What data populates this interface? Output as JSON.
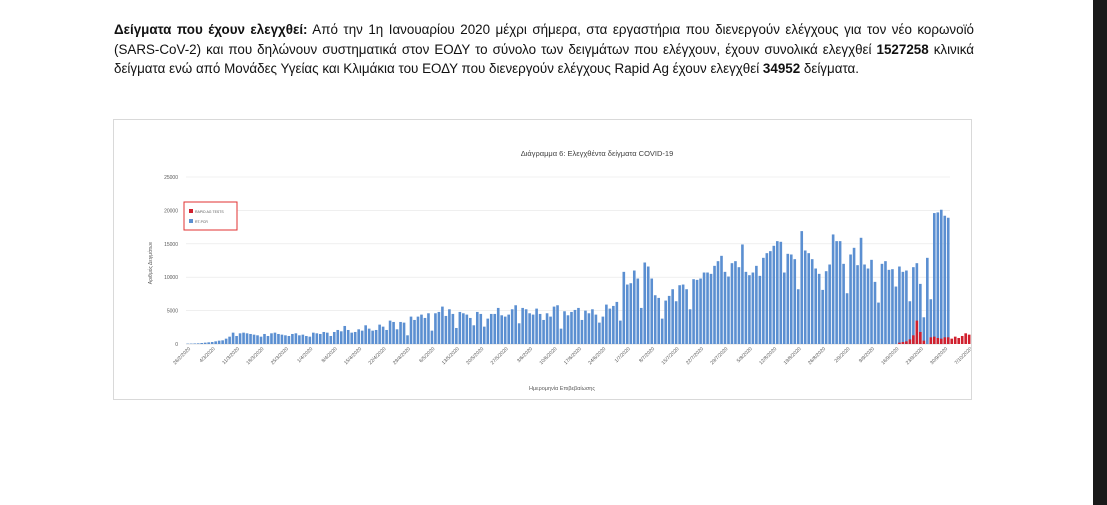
{
  "paragraph": {
    "heading": "Δείγματα που έχουν ελεγχθεί:",
    "text1": " Από την 1η Ιανουαρίου 2020 μέχρι σήμερα, στα εργαστήρια που διενεργούν ελέγχους για τον νέο κορωνοϊό (SARS-CoV-2) και που δηλώνουν συστηματικά στον ΕΟΔΥ το σύνολο των δειγμάτων που ελέγχουν, έχουν συνολικά ελεγχθεί ",
    "total_samples": "1527258",
    "text2": " κλινικά δείγματα ενώ από Μονάδες Υγείας και Κλιμάκια του ΕΟΔΥ που διενεργούν ελέγχους Rapid Ag έχουν ελεγχθεί ",
    "rapid_samples": "34952",
    "text3": " δείγματα."
  },
  "colors": {
    "pcr": "#5b8fd1",
    "rapid": "#d0202e",
    "legend_border": "#e03030",
    "axis_text": "#595959",
    "grid": "#e6e6e6"
  },
  "chart_data": {
    "type": "bar",
    "title": "Διάγραμμα 6: Ελεγχθέντα δείγματα COVID-19",
    "xlabel": "Ημερομηνία Επιβεβαίωσης",
    "ylabel": "Αριθμός Δειγμάτων",
    "ylim": [
      0,
      25000
    ],
    "yticks": [
      "0",
      "5000",
      "10000",
      "15000",
      "20000",
      "25000"
    ],
    "x_tick_labels": [
      "26/2/2020",
      "4/3/2020",
      "11/3/2020",
      "18/3/2020",
      "25/3/2020",
      "1/4/2020",
      "8/4/2020",
      "15/4/2020",
      "22/4/2020",
      "29/4/2020",
      "6/5/2020",
      "13/5/2020",
      "20/5/2020",
      "27/5/2020",
      "3/6/2020",
      "10/6/2020",
      "17/6/2020",
      "24/6/2020",
      "1/7/2020",
      "8/7/2020",
      "15/7/2020",
      "22/7/2020",
      "29/7/2020",
      "5/8/2020",
      "12/8/2020",
      "19/8/2020",
      "26/8/2020",
      "2/9/2020",
      "9/9/2020",
      "16/9/2020",
      "23/9/2020",
      "30/9/2020",
      "7/10/2020",
      "14/10/2020"
    ],
    "grid": true,
    "legend_position": "top-left",
    "series": [
      {
        "name": "RAPID AG TESTS",
        "start_date": "2020-09-10",
        "values": [
          0,
          0,
          0,
          0,
          0,
          0,
          0,
          200,
          300,
          400,
          700,
          1300,
          3500,
          1800,
          500,
          0,
          1000,
          1100,
          900,
          800,
          1000,
          1000,
          800,
          1100,
          900,
          1200,
          1600,
          1400,
          1600,
          1900,
          2000,
          1500,
          1700,
          2100,
          2200,
          2500,
          1600,
          2300,
          2400
        ]
      },
      {
        "name": "RT-PCR",
        "start_date": "2020-02-26",
        "values": [
          50,
          60,
          80,
          100,
          150,
          200,
          250,
          300,
          400,
          500,
          550,
          800,
          1100,
          1700,
          1200,
          1600,
          1700,
          1600,
          1500,
          1400,
          1300,
          1100,
          1500,
          1200,
          1600,
          1700,
          1500,
          1400,
          1300,
          1200,
          1500,
          1600,
          1300,
          1400,
          1200,
          1100,
          1700,
          1600,
          1500,
          1800,
          1700,
          1200,
          1800,
          2100,
          1900,
          2700,
          2100,
          1700,
          1800,
          2200,
          2000,
          2800,
          2300,
          2000,
          2100,
          2900,
          2600,
          2100,
          3500,
          3300,
          2200,
          3300,
          3200,
          1300,
          4100,
          3600,
          4100,
          4400,
          3900,
          4600,
          2000,
          4600,
          4800,
          5600,
          4200,
          5200,
          4500,
          2400,
          4800,
          4600,
          4400,
          3900,
          2800,
          4800,
          4500,
          2600,
          3800,
          4500,
          4500,
          5400,
          4300,
          4100,
          4400,
          5200,
          5800,
          3100,
          5400,
          5200,
          4600,
          4400,
          5300,
          4500,
          3600,
          4600,
          4100,
          5600,
          5800,
          2300,
          4900,
          4300,
          4800,
          5100,
          5400,
          3600,
          5000,
          4600,
          5200,
          4400,
          3200,
          4100,
          5900,
          5300,
          5700,
          6300,
          3500,
          10800,
          8900,
          9100,
          11000,
          9800,
          5400,
          12200,
          11600,
          9800,
          7300,
          6900,
          3800,
          6500,
          7200,
          8200,
          6400,
          8800,
          8900,
          8200,
          5200,
          9700,
          9600,
          9800,
          10700,
          10700,
          10500,
          11700,
          12400,
          13200,
          10800,
          10100,
          12100,
          12400,
          11500,
          14900,
          10800,
          10300,
          10700,
          11700,
          10200,
          12900,
          13600,
          13900,
          14700,
          15400,
          15300,
          10700,
          13500,
          13400,
          12700,
          8200,
          16900,
          14000,
          13600,
          12700,
          11300,
          10500,
          8100,
          10900,
          11900,
          16400,
          15400,
          15400,
          12000,
          7600,
          13400,
          14400,
          11800,
          15900,
          11900,
          11300,
          12600,
          9300,
          6200,
          12000,
          12400,
          11100,
          11200,
          8600,
          11600,
          10800,
          11000,
          6400,
          11500,
          12100,
          9000,
          4000,
          12900,
          6700,
          19600,
          19700,
          20100,
          19200,
          18900
        ]
      }
    ]
  }
}
